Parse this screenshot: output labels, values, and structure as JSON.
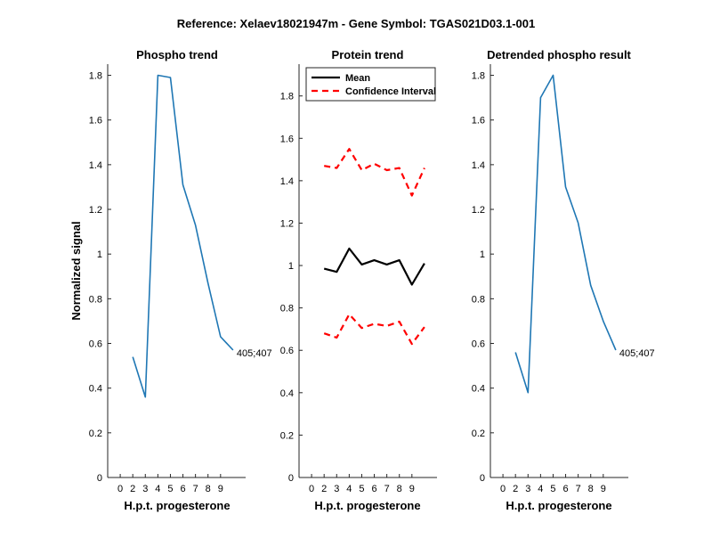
{
  "figure": {
    "suptitle": "Reference:  Xelaev18021947m - Gene Symbol:  TGAS021D03.1-001"
  },
  "colors": {
    "phospho_line": "#1f77b4",
    "mean_line": "#000000",
    "ci_line": "#ff0000",
    "axis": "#262626"
  },
  "chart_data": [
    {
      "type": "line",
      "title": "Phospho trend",
      "xlabel": "H.p.t. progesterone",
      "ylabel": "Normalized signal",
      "xlim": [
        -1,
        10
      ],
      "ylim": [
        0,
        1.85
      ],
      "xticks": [
        "0",
        "2",
        "3",
        "4",
        "5",
        "6",
        "7",
        "8",
        "9"
      ],
      "yticks": [
        "0",
        "0.2",
        "0.4",
        "0.6",
        "0.8",
        "1",
        "1.2",
        "1.4",
        "1.6",
        "1.8"
      ],
      "series": [
        {
          "x": [
            1,
            2,
            3,
            4,
            5,
            6,
            7,
            8,
            9
          ],
          "values": [
            0.54,
            0.36,
            1.8,
            1.79,
            1.31,
            1.13,
            0.87,
            0.63,
            0.57
          ]
        }
      ],
      "annotations": [
        {
          "text": "405;407",
          "x": 9,
          "y": 0.57
        }
      ]
    },
    {
      "type": "line",
      "title": "Protein trend",
      "xlabel": "H.p.t. progesterone",
      "ylabel": "",
      "xlim": [
        -1,
        10
      ],
      "ylim": [
        0,
        1.95
      ],
      "xticks": [
        "0",
        "2",
        "3",
        "4",
        "5",
        "6",
        "7",
        "8",
        "9"
      ],
      "yticks": [
        "0",
        "0.2",
        "0.4",
        "0.6",
        "0.8",
        "1",
        "1.2",
        "1.4",
        "1.6",
        "1.8"
      ],
      "legend": {
        "position": "top-left",
        "entries": [
          "Mean",
          "Confidence Interval"
        ]
      },
      "series": [
        {
          "name": "Mean",
          "style": "solid",
          "x": [
            1,
            2,
            3,
            4,
            5,
            6,
            7,
            8,
            9
          ],
          "values": [
            0.985,
            0.97,
            1.08,
            1.005,
            1.025,
            1.005,
            1.025,
            0.91,
            1.01
          ]
        },
        {
          "name": "Confidence Interval",
          "style": "dashed",
          "x": [
            1,
            2,
            3,
            4,
            5,
            6,
            7,
            8,
            9
          ],
          "values": [
            1.47,
            1.46,
            1.55,
            1.45,
            1.48,
            1.45,
            1.46,
            1.33,
            1.46
          ]
        },
        {
          "name": "Confidence Interval",
          "style": "dashed",
          "legend": false,
          "x": [
            1,
            2,
            3,
            4,
            5,
            6,
            7,
            8,
            9
          ],
          "values": [
            0.68,
            0.66,
            0.77,
            0.705,
            0.725,
            0.715,
            0.735,
            0.63,
            0.71
          ]
        }
      ]
    },
    {
      "type": "line",
      "title": "Detrended phospho result",
      "xlabel": "H.p.t. progesterone",
      "ylabel": "",
      "xlim": [
        -1,
        10
      ],
      "ylim": [
        0,
        1.85
      ],
      "xticks": [
        "0",
        "2",
        "3",
        "4",
        "5",
        "6",
        "7",
        "8",
        "9"
      ],
      "yticks": [
        "0",
        "0.2",
        "0.4",
        "0.6",
        "0.8",
        "1",
        "1.2",
        "1.4",
        "1.6",
        "1.8"
      ],
      "series": [
        {
          "x": [
            1,
            2,
            3,
            4,
            5,
            6,
            7,
            8,
            9
          ],
          "values": [
            0.56,
            0.38,
            1.7,
            1.8,
            1.3,
            1.14,
            0.86,
            0.7,
            0.57
          ]
        }
      ],
      "annotations": [
        {
          "text": "405;407",
          "x": 9,
          "y": 0.57
        }
      ]
    }
  ]
}
